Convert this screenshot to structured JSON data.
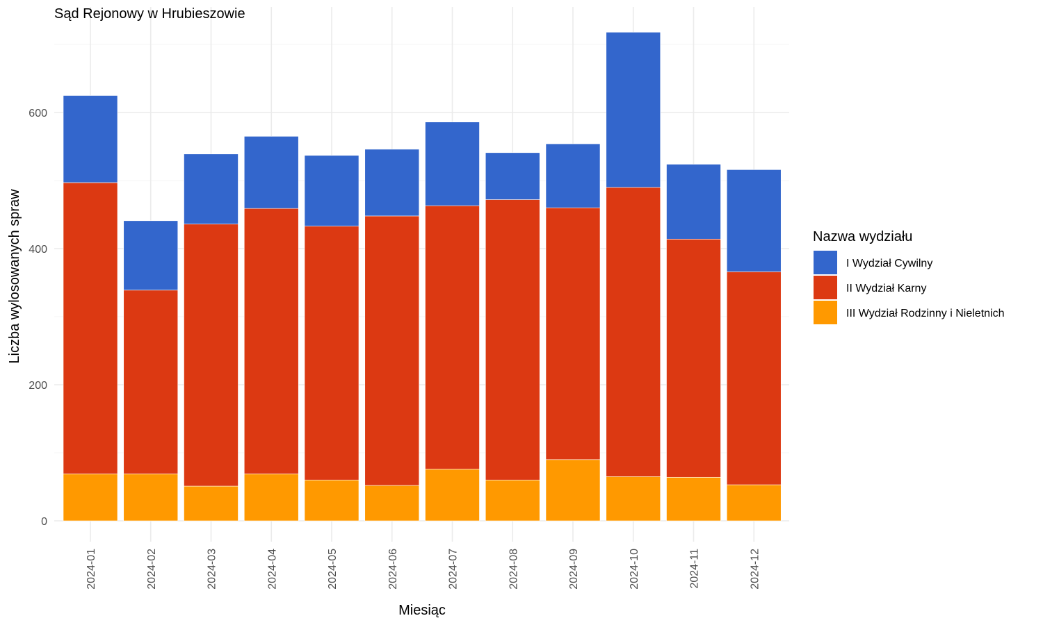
{
  "chart_data": {
    "type": "bar",
    "stacked": true,
    "title": "Sąd Rejonowy w Hrubieszowie",
    "xlabel": "Miesiąc",
    "ylabel": "Liczba wylosowanych spraw",
    "categories": [
      "2024-01",
      "2024-02",
      "2024-03",
      "2024-04",
      "2024-05",
      "2024-06",
      "2024-07",
      "2024-08",
      "2024-09",
      "2024-10",
      "2024-11",
      "2024-12"
    ],
    "series": [
      {
        "name": "III Wydział Rodzinny i Nieletnich",
        "color": "#FF9900",
        "values": [
          69,
          69,
          51,
          69,
          60,
          52,
          76,
          60,
          90,
          65,
          64,
          53
        ]
      },
      {
        "name": "II Wydział Karny",
        "color": "#DC3912",
        "values": [
          428,
          270,
          385,
          390,
          373,
          396,
          387,
          412,
          370,
          425,
          350,
          313
        ]
      },
      {
        "name": "I Wydział Cywilny",
        "color": "#3366CC",
        "values": [
          128,
          102,
          103,
          106,
          104,
          98,
          123,
          69,
          94,
          228,
          110,
          150
        ]
      }
    ],
    "legend": {
      "title": "Nazwa wydziału",
      "placement": "right",
      "order": [
        "I Wydział Cywilny",
        "II Wydział Karny",
        "III Wydział Rodzinny i Nieletnich"
      ]
    },
    "yticks": [
      0,
      200,
      400,
      600
    ],
    "ylim": [
      0,
      720
    ],
    "grid": true
  }
}
